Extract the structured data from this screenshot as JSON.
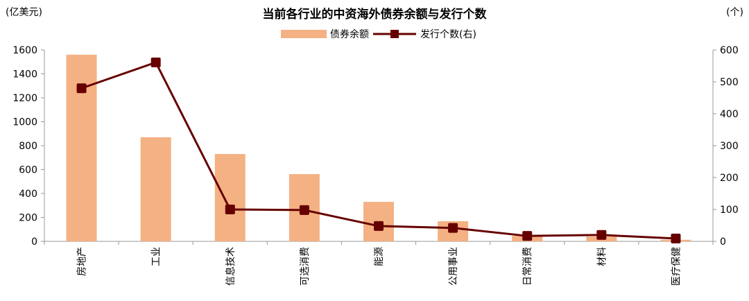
{
  "chart_data": {
    "type": "bar+line",
    "title": "当前各行业的中资海外债券余额与发行个数",
    "ylabel_left": "(亿美元)",
    "ylabel_right": "(个)",
    "ylim_left": [
      0,
      1600
    ],
    "ylim_right": [
      0,
      600
    ],
    "yticks_left": [
      0,
      200,
      400,
      600,
      800,
      1000,
      1200,
      1400,
      1600
    ],
    "yticks_right": [
      0,
      100,
      200,
      300,
      400,
      500,
      600
    ],
    "grid": false,
    "legend_position": "top-center",
    "categories": [
      "房地产",
      "工业",
      "信息技术",
      "可选消费",
      "能源",
      "公用事业",
      "日常消费",
      "材料",
      "医疗保健"
    ],
    "series": [
      {
        "name": "债券余额",
        "type": "bar",
        "axis": "left",
        "color": "#F4B183",
        "values": [
          1560,
          870,
          730,
          562,
          330,
          168,
          46,
          40,
          13
        ]
      },
      {
        "name": "发行个数(右)",
        "type": "line",
        "axis": "right",
        "color": "#660000",
        "values": [
          480,
          561,
          100,
          98,
          48,
          42,
          17,
          20,
          9
        ]
      }
    ]
  }
}
